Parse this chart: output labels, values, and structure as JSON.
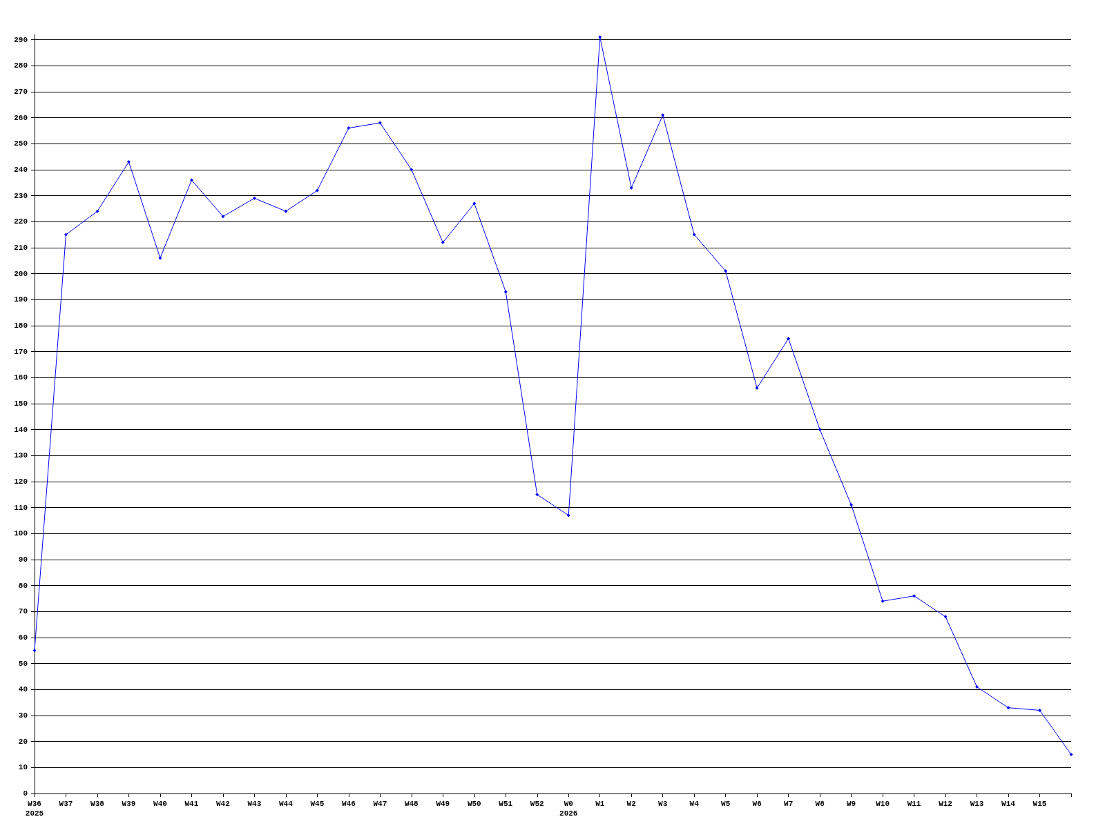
{
  "chart_data": {
    "type": "line",
    "categories": [
      "W36\n2025",
      "W37",
      "W38",
      "W39",
      "W40",
      "W41",
      "W42",
      "W43",
      "W44",
      "W45",
      "W46",
      "W47",
      "W48",
      "W49",
      "W50",
      "W51",
      "W52",
      "W0\n2026",
      "W1",
      "W2",
      "W3",
      "W4",
      "W5",
      "W6",
      "W7",
      "W8",
      "W9",
      "W10",
      "W11",
      "W12",
      "W13",
      "W14",
      "W15",
      null
    ],
    "series": [
      {
        "color": "#0000ff",
        "values": [
          55,
          215,
          224,
          243,
          206,
          236,
          222,
          229,
          224,
          232,
          256,
          258,
          240,
          212,
          227,
          193,
          115,
          107,
          291,
          233,
          261,
          215,
          201,
          156,
          175,
          140,
          111,
          74,
          76,
          68,
          41,
          33,
          32,
          15
        ]
      }
    ],
    "ylim": [
      0,
      292
    ],
    "yticks": [
      0,
      10,
      20,
      30,
      40,
      50,
      60,
      70,
      80,
      90,
      100,
      110,
      120,
      130,
      140,
      150,
      160,
      170,
      180,
      190,
      200,
      210,
      220,
      230,
      240,
      250,
      260,
      270,
      280,
      290
    ],
    "grid": "y",
    "marker": "diamond",
    "line_style": "solid"
  }
}
